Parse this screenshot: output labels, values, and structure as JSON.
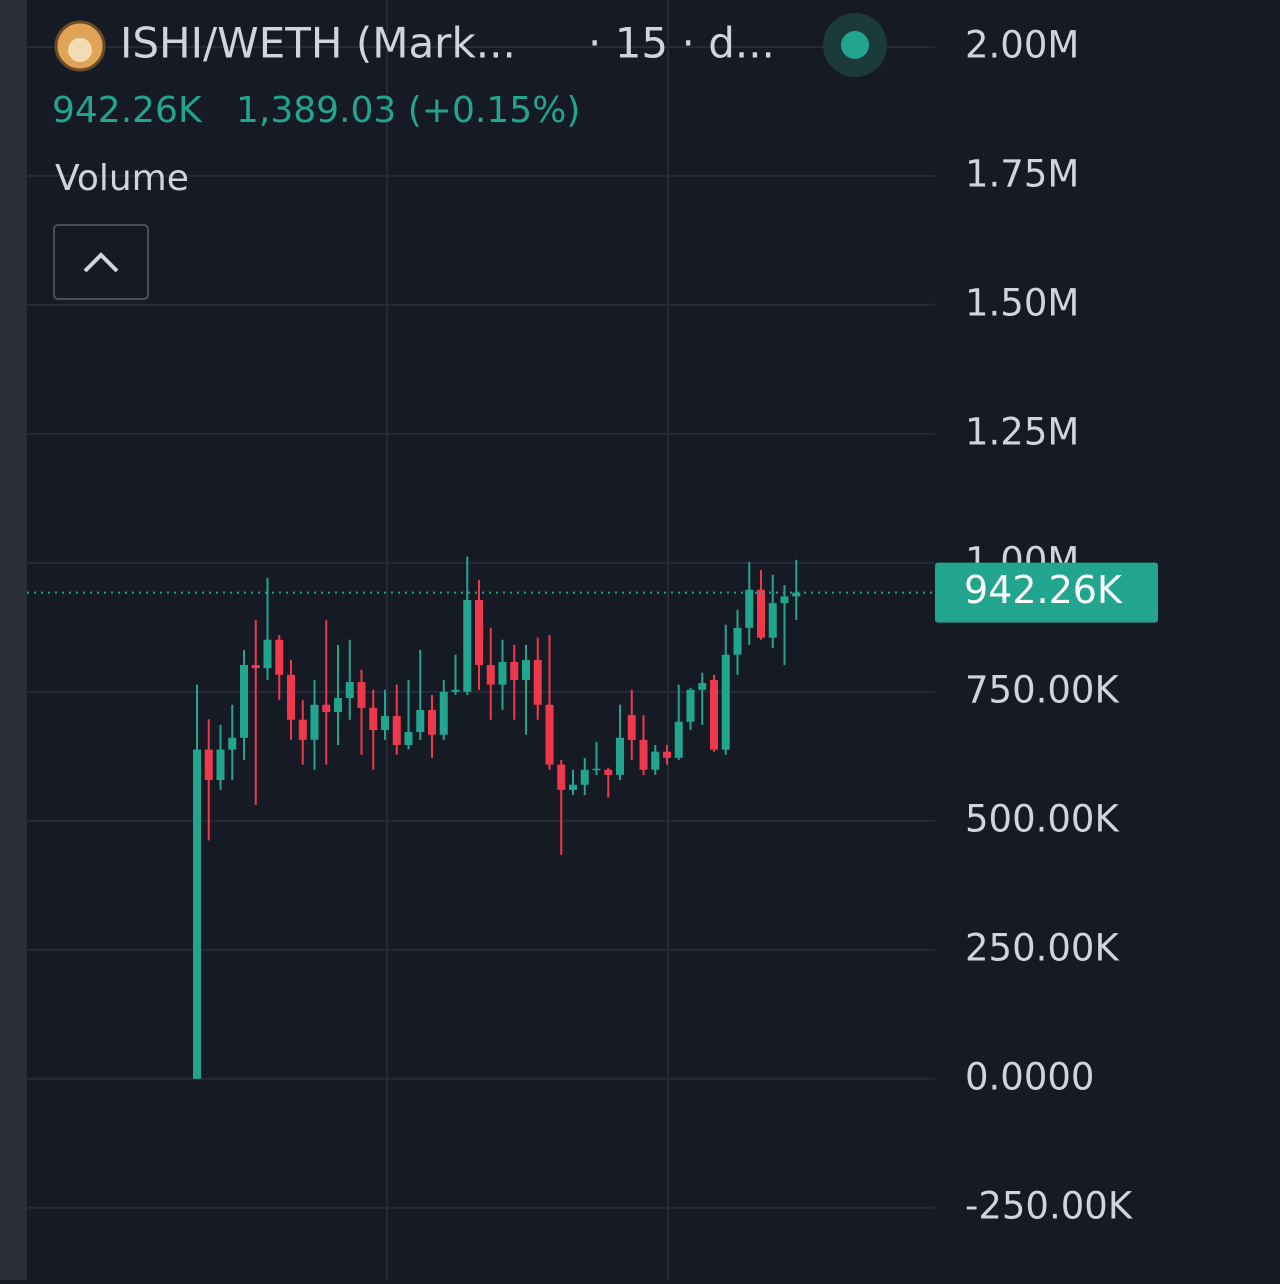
{
  "header": {
    "pair": "ISHI/WETH (Mark...",
    "interval": "· 15 · d...",
    "change": "1,389.03 (+0.15%)",
    "indicator": "Volume"
  },
  "chart_data": {
    "type": "candlestick",
    "current": {
      "value": 942260,
      "label": "942.26K"
    },
    "up_color": "#22a58f",
    "down_color": "#f0384c",
    "open": [
      0,
      638000,
      579000,
      638000,
      661000,
      802000,
      796000,
      851000,
      783000,
      696000,
      657000,
      725000,
      711000,
      738000,
      769000,
      719000,
      676000,
      703000,
      647000,
      672000,
      715000,
      667000,
      750000,
      750000,
      928000,
      802000,
      764000,
      808000,
      773000,
      812000,
      725000,
      609000,
      560000,
      570000,
      599000,
      599000,
      589000,
      705000,
      657000,
      599000,
      634000,
      622000,
      692000,
      754000,
      773000,
      638000,
      822000,
      874000,
      948000,
      855000,
      922000,
      935000
    ],
    "high": [
      764000,
      697000,
      686000,
      725000,
      831000,
      889000,
      971000,
      860000,
      812000,
      734000,
      773000,
      889000,
      841000,
      851000,
      793000,
      754000,
      754000,
      764000,
      773000,
      831000,
      744000,
      773000,
      822000,
      1012000,
      967000,
      874000,
      851000,
      841000,
      841000,
      855000,
      860000,
      618000,
      599000,
      622000,
      653000,
      603000,
      725000,
      754000,
      705000,
      647000,
      647000,
      764000,
      758000,
      787000,
      783000,
      880000,
      909000,
      1002000,
      986000,
      977000,
      957000,
      1006000
    ],
    "low": [
      0,
      462000,
      560000,
      579000,
      618000,
      531000,
      773000,
      734000,
      657000,
      609000,
      599000,
      609000,
      647000,
      696000,
      628000,
      599000,
      657000,
      628000,
      638000,
      657000,
      622000,
      657000,
      744000,
      744000,
      754000,
      696000,
      715000,
      696000,
      667000,
      696000,
      599000,
      434000,
      550000,
      550000,
      589000,
      545000,
      579000,
      618000,
      589000,
      589000,
      609000,
      618000,
      676000,
      686000,
      634000,
      628000,
      783000,
      841000,
      851000,
      835000,
      802000,
      889000
    ],
    "close": [
      638000,
      579000,
      638000,
      661000,
      802000,
      796000,
      851000,
      783000,
      696000,
      657000,
      725000,
      711000,
      738000,
      769000,
      719000,
      676000,
      703000,
      647000,
      672000,
      715000,
      667000,
      750000,
      754000,
      928000,
      802000,
      764000,
      808000,
      773000,
      812000,
      725000,
      609000,
      560000,
      570000,
      599000,
      601000,
      589000,
      661000,
      657000,
      599000,
      634000,
      622000,
      692000,
      754000,
      767000,
      638000,
      822000,
      874000,
      948000,
      855000,
      922000,
      935000,
      942260
    ],
    "ylim": [
      -390000,
      2091000
    ],
    "yticks": [
      {
        "value": 2000000,
        "label": "2.00M"
      },
      {
        "value": 1750000,
        "label": "1.75M"
      },
      {
        "value": 1500000,
        "label": "1.50M"
      },
      {
        "value": 1250000,
        "label": "1.25M"
      },
      {
        "value": 1000000,
        "label": "1.00M"
      },
      {
        "value": 750000,
        "label": "750.00K"
      },
      {
        "value": 500000,
        "label": "500.00K"
      },
      {
        "value": 250000,
        "label": "250.00K"
      },
      {
        "value": 0,
        "label": "0.0000"
      },
      {
        "value": -250000,
        "label": "-250.00K"
      }
    ],
    "grid": true
  }
}
